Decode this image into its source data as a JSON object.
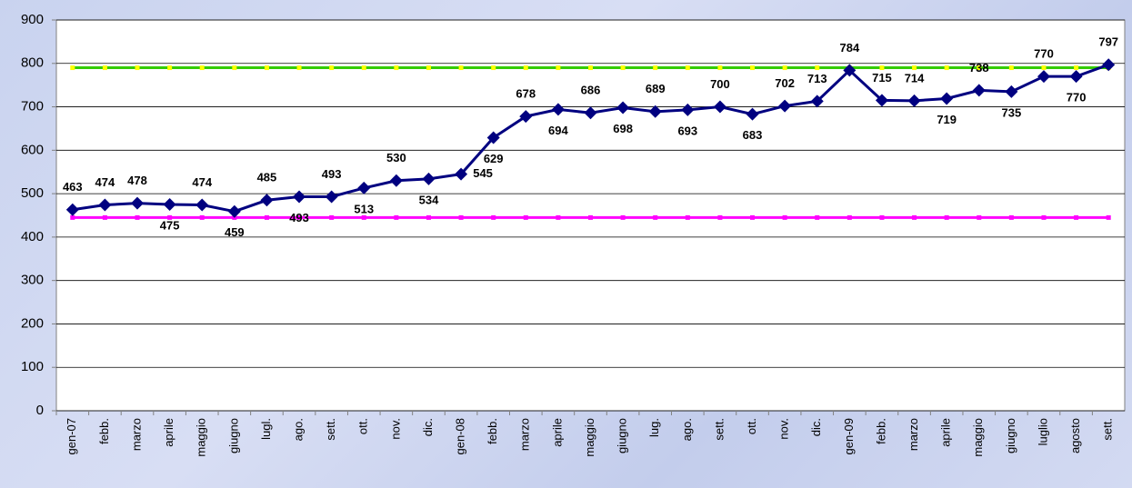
{
  "chart_data": {
    "type": "line",
    "categories": [
      "gen-07",
      "febb.",
      "marzo",
      "aprile",
      "maggio",
      "giugno",
      "lugl.",
      "ago.",
      "sett.",
      "ott.",
      "nov.",
      "dic.",
      "gen-08",
      "febb.",
      "marzo",
      "aprile",
      "maggio",
      "giugno",
      "lug.",
      "ago.",
      "sett.",
      "ott.",
      "nov.",
      "dic.",
      "gen-09",
      "febb.",
      "marzo",
      "aprile",
      "maggio",
      "giugno",
      "luglio",
      "agosto",
      "sett."
    ],
    "series": [
      {
        "color": "#000080",
        "values": [
          463,
          474,
          478,
          475,
          474,
          459,
          485,
          493,
          493,
          513,
          530,
          534,
          545,
          629,
          678,
          694,
          686,
          698,
          689,
          693,
          700,
          683,
          702,
          713,
          784,
          715,
          714,
          719,
          738,
          735,
          770,
          770,
          797
        ]
      }
    ],
    "reference_lines": [
      {
        "value": 790,
        "color": "#33cc00"
      },
      {
        "value": 445,
        "color": "#ff00ff"
      }
    ],
    "ylim": [
      0,
      900
    ],
    "yticks": [
      0,
      100,
      200,
      300,
      400,
      500,
      600,
      700,
      800,
      900
    ],
    "grid": true
  }
}
